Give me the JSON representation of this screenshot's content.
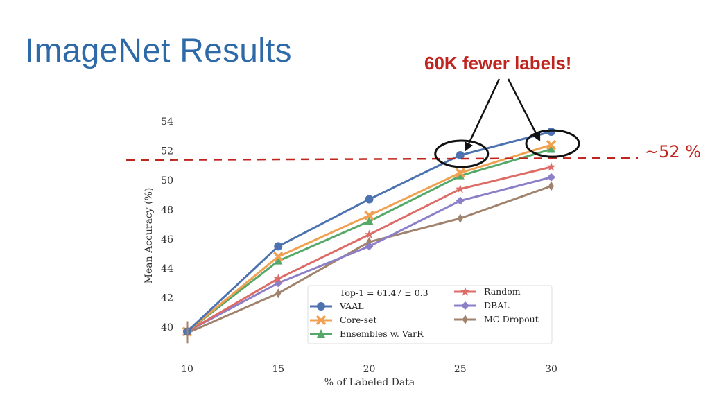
{
  "slide": {
    "title": "ImageNet Results",
    "callout": "60K fewer labels!",
    "reference_label": "~52 %",
    "accent_red": "#c0241f",
    "title_blue": "#2e6aa8"
  },
  "chart_data": {
    "type": "line",
    "title": "",
    "xlabel": "% of Labeled Data",
    "ylabel": "Mean Accuracy (%)",
    "x": [
      10,
      15,
      20,
      25,
      30
    ],
    "xlim": [
      10,
      30
    ],
    "ylim": [
      39,
      54.5
    ],
    "xticks": [
      10,
      15,
      20,
      25,
      30
    ],
    "yticks": [
      40,
      42,
      44,
      46,
      48,
      50,
      52,
      54
    ],
    "grid": false,
    "legend_title": "Top-1  = 61.47 ± 0.3",
    "legend_position": "lower-right",
    "reference_line": {
      "y": 51.7,
      "style": "dashed",
      "color": "#c0241f"
    },
    "highlights": [
      {
        "x": 25,
        "y": 51.7
      },
      {
        "x": 30,
        "y": 52.4
      }
    ],
    "series": [
      {
        "name": "VAAL",
        "color": "#4c72b0",
        "marker": "circle",
        "values": [
          39.7,
          45.5,
          48.7,
          51.7,
          53.3
        ]
      },
      {
        "name": "Core-set",
        "color": "#f0a050",
        "marker": "x",
        "values": [
          39.7,
          44.8,
          47.6,
          50.5,
          52.4
        ]
      },
      {
        "name": "Ensembles w. VarR",
        "color": "#55a868",
        "marker": "triangle",
        "values": [
          39.7,
          44.5,
          47.2,
          50.3,
          52.1
        ]
      },
      {
        "name": "Random",
        "color": "#dd6b66",
        "marker": "star",
        "values": [
          39.7,
          43.3,
          46.3,
          49.4,
          50.9
        ]
      },
      {
        "name": "DBAL",
        "color": "#8c7fc8",
        "marker": "diamond",
        "values": [
          39.7,
          43.0,
          45.5,
          48.6,
          50.2
        ]
      },
      {
        "name": "MC-Dropout",
        "color": "#a0826d",
        "marker": "thin-diamond",
        "values": [
          39.6,
          42.3,
          45.8,
          47.4,
          49.6
        ]
      }
    ],
    "legend_layout": [
      [
        "VAAL",
        "Core-set",
        "Ensembles w. VarR"
      ],
      [
        "Random",
        "DBAL",
        "MC-Dropout"
      ]
    ]
  }
}
